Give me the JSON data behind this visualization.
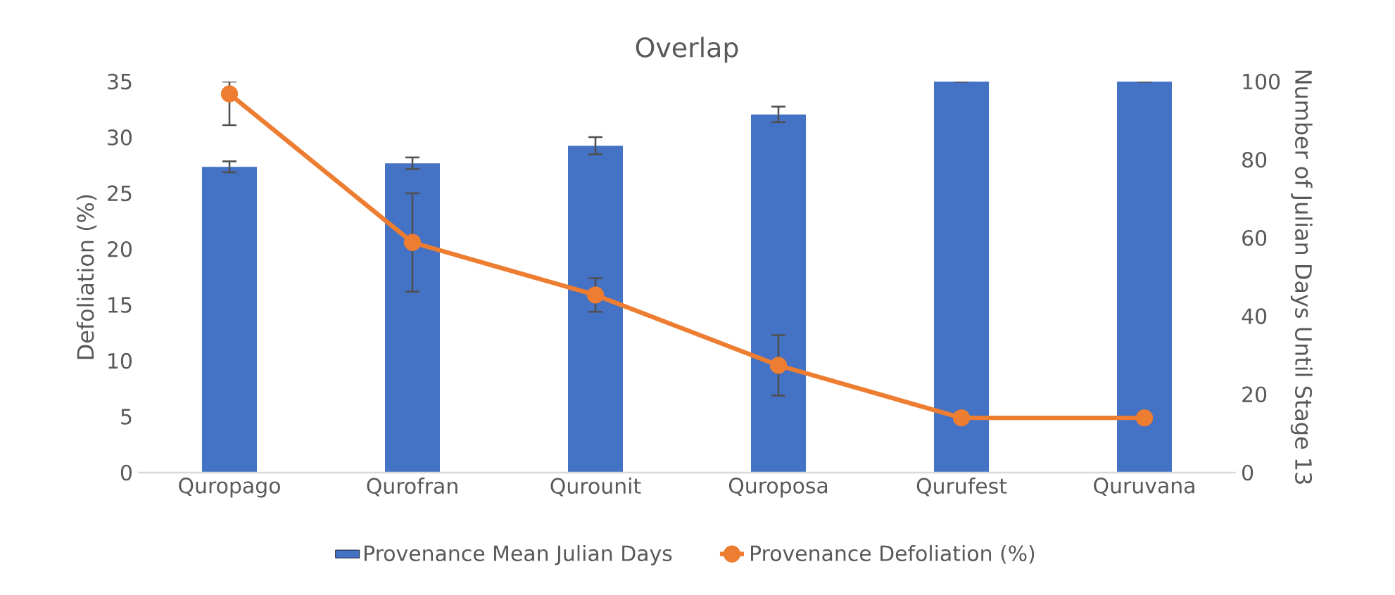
{
  "chart_data": {
    "type": "bar",
    "title": "Overlap",
    "categories": [
      "Quropago",
      "Qurofran",
      "Qurounit",
      "Quroposa",
      "Qurufest",
      "Quruvana"
    ],
    "ylabel": "Defoliation (%)",
    "y2label": "Number of Julian Days Until Stage 13",
    "ylim": [
      0,
      35
    ],
    "yticks": [
      0,
      5,
      10,
      15,
      20,
      25,
      30,
      35
    ],
    "y2lim": [
      0,
      100
    ],
    "y2ticks": [
      0,
      20,
      40,
      60,
      80,
      100
    ],
    "series": [
      {
        "name": "Provenance Mean Julian Days",
        "axis": "y2",
        "color": "#4472c4",
        "values": [
          78.2,
          79.1,
          83.6,
          91.6,
          100,
          100
        ],
        "errors": [
          1.4,
          1.5,
          2.2,
          2,
          0,
          0
        ]
      },
      {
        "name": "Provenance Defoliation (%)",
        "type": "line",
        "color": "#ed7d31",
        "values": [
          33.9,
          20.6,
          15.9,
          9.6,
          4.9,
          4.9
        ],
        "errors": [
          [
            31.1,
            35
          ],
          4.4,
          1.5,
          2.7,
          null,
          null
        ]
      }
    ],
    "marker": "circle",
    "legend": "bottom",
    "grid": false
  }
}
